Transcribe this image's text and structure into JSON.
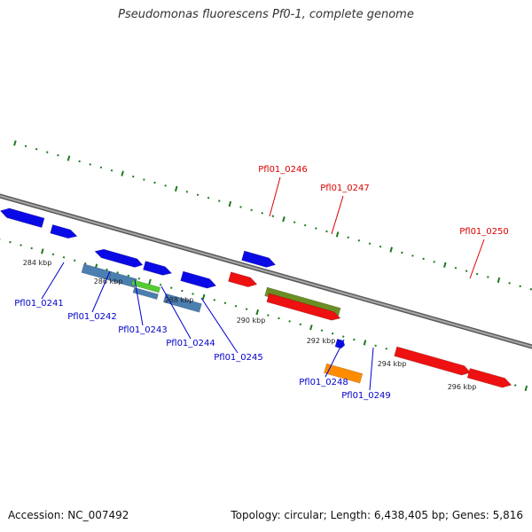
{
  "title": "Pseudomonas fluorescens Pf0-1, complete genome",
  "footer": {
    "accession": "Accession: NC_007492",
    "summary": "Topology: circular; Length: 6,438,405 bp; Genes: 5,816"
  },
  "colors": {
    "backbone": "#8a8a8a",
    "tick": "#1f7a1f",
    "label_blue": "#0000cc",
    "label_red": "#dd0000",
    "gene_blue": "#0a0ae6",
    "gene_steel": "#4a7fb0",
    "gene_green": "#55cc33",
    "gene_olive": "#6b8e23",
    "gene_red": "#ee1111",
    "gene_orange": "#ff8c00"
  },
  "scale_labels": [
    "284 kbp",
    "286 kbp",
    "288 kbp",
    "290 kbp",
    "292 kbp",
    "294 kbp",
    "296 kbp"
  ],
  "genes": [
    {
      "id": "g0",
      "color": "gene_blue",
      "strand": "-"
    },
    {
      "id": "g1",
      "color": "gene_blue",
      "strand": "-"
    },
    {
      "id": "g2",
      "color": "gene_blue",
      "strand": "+"
    },
    {
      "id": "g3",
      "color": "gene_blue",
      "strand": "-"
    },
    {
      "id": "g4",
      "color": "gene_blue",
      "strand": "+"
    },
    {
      "id": "g5",
      "color": "gene_blue",
      "strand": "+"
    },
    {
      "id": "g6",
      "color": "gene_blue",
      "strand": "+"
    },
    {
      "id": "g7",
      "color": "gene_steel",
      "strand": "none"
    },
    {
      "id": "g8",
      "color": "gene_steel",
      "strand": "none"
    },
    {
      "id": "g9",
      "color": "gene_green",
      "strand": "none"
    },
    {
      "id": "g10",
      "color": "gene_steel",
      "strand": "none"
    },
    {
      "id": "g11",
      "color": "gene_steel",
      "strand": "none"
    },
    {
      "id": "g12",
      "color": "gene_red",
      "strand": "+"
    },
    {
      "id": "g13",
      "color": "gene_olive",
      "strand": "none"
    },
    {
      "id": "g14",
      "color": "gene_red",
      "strand": "+"
    },
    {
      "id": "g15",
      "color": "gene_blue",
      "strand": "+"
    },
    {
      "id": "g16",
      "color": "gene_blue",
      "strand": "+"
    },
    {
      "id": "g17",
      "color": "gene_orange",
      "strand": "none"
    },
    {
      "id": "g18",
      "color": "gene_red",
      "strand": "+"
    },
    {
      "id": "g19",
      "color": "gene_red",
      "strand": "+"
    }
  ],
  "gene_labels": [
    {
      "text": "Pfl01_0241",
      "color": "label_blue"
    },
    {
      "text": "Pfl01_0242",
      "color": "label_blue"
    },
    {
      "text": "Pfl01_0243",
      "color": "label_blue"
    },
    {
      "text": "Pfl01_0244",
      "color": "label_blue"
    },
    {
      "text": "Pfl01_0245",
      "color": "label_blue"
    },
    {
      "text": "Pfl01_0246",
      "color": "label_red"
    },
    {
      "text": "Pfl01_0247",
      "color": "label_red"
    },
    {
      "text": "Pfl01_0248",
      "color": "label_blue"
    },
    {
      "text": "Pfl01_0249",
      "color": "label_blue"
    },
    {
      "text": "Pfl01_0250",
      "color": "label_red"
    }
  ]
}
